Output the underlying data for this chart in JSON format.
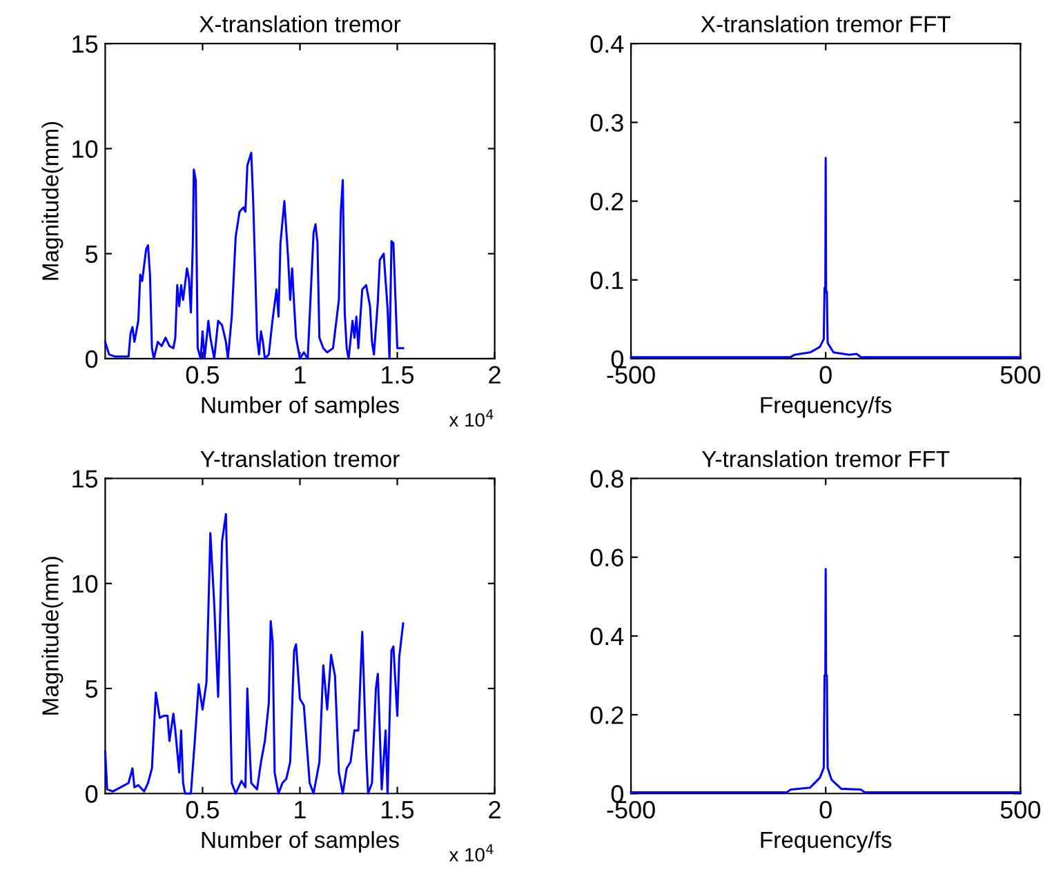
{
  "chart_data": [
    {
      "type": "line",
      "title": "X-translation tremor",
      "xlabel": "Number of samples",
      "ylabel": "Magnitude(mm)",
      "annotations": [
        "x 10$^{4}$"
      ],
      "xlim": [
        0,
        2
      ],
      "xticks": [
        0.5,
        1,
        1.5,
        2
      ],
      "ylim": [
        0,
        15
      ],
      "yticks": [
        0,
        5,
        10,
        15
      ],
      "x": [
        0,
        0.02,
        0.05,
        0.12,
        0.13,
        0.14,
        0.15,
        0.17,
        0.18,
        0.19,
        0.21,
        0.22,
        0.23,
        0.24,
        0.25,
        0.27,
        0.29,
        0.31,
        0.33,
        0.35,
        0.36,
        0.37,
        0.38,
        0.39,
        0.4,
        0.42,
        0.43,
        0.44,
        0.45,
        0.455,
        0.465,
        0.475,
        0.49,
        0.5,
        0.51,
        0.53,
        0.54,
        0.56,
        0.58,
        0.6,
        0.62,
        0.63,
        0.65,
        0.67,
        0.69,
        0.71,
        0.72,
        0.73,
        0.75,
        0.76,
        0.77,
        0.78,
        0.79,
        0.8,
        0.81,
        0.82,
        0.84,
        0.86,
        0.88,
        0.89,
        0.9,
        0.92,
        0.94,
        0.95,
        0.96,
        0.97,
        0.98,
        1.0,
        1.02,
        1.04,
        1.07,
        1.08,
        1.09,
        1.1,
        1.12,
        1.14,
        1.17,
        1.2,
        1.21,
        1.22,
        1.23,
        1.24,
        1.25,
        1.27,
        1.28,
        1.29,
        1.3,
        1.32,
        1.34,
        1.36,
        1.37,
        1.38,
        1.4,
        1.41,
        1.43,
        1.45,
        1.46,
        1.47,
        1.48,
        1.5,
        1.53
      ],
      "series": [
        {
          "color": "#0000ff",
          "values": [
            0.8,
            0.2,
            0.1,
            0.1,
            1.2,
            1.5,
            0.8,
            1.8,
            4.0,
            3.7,
            5.2,
            5.4,
            4.0,
            0.5,
            0.0,
            0.8,
            0.6,
            1.0,
            0.6,
            0.5,
            1.0,
            3.5,
            2.5,
            3.5,
            2.8,
            4.3,
            3.8,
            2.2,
            5.5,
            9.0,
            8.5,
            0.5,
            0.0,
            1.3,
            0.0,
            1.8,
            1.0,
            0.0,
            1.8,
            1.6,
            0.8,
            0.0,
            2.0,
            5.8,
            7.0,
            7.2,
            7.0,
            9.2,
            9.8,
            7.5,
            4.3,
            1.0,
            0.2,
            1.3,
            0.8,
            0.0,
            0.2,
            1.9,
            3.3,
            2.0,
            5.5,
            7.5,
            4.7,
            2.8,
            4.3,
            2.6,
            1.0,
            0.0,
            0.3,
            0.0,
            6.0,
            6.4,
            5.5,
            1.0,
            0.5,
            0.3,
            0.5,
            2.8,
            7.0,
            8.5,
            2.2,
            0.5,
            0.0,
            1.8,
            1.0,
            2.0,
            0.5,
            3.3,
            3.5,
            2.5,
            0.8,
            0.2,
            2.7,
            4.7,
            5.0,
            2.4,
            0.0,
            5.6,
            5.5,
            0.5,
            0.5
          ]
        }
      ]
    },
    {
      "type": "line",
      "title": "X-translation tremor FFT",
      "xlabel": "Frequency/fs",
      "xlim": [
        -500,
        500
      ],
      "xticks": [
        -500,
        0,
        500
      ],
      "ylim": [
        0,
        0.4
      ],
      "yticks": [
        0,
        0.1,
        0.2,
        0.3,
        0.4
      ],
      "x": [
        -500,
        -90,
        -80,
        -40,
        -15,
        -5,
        -3,
        -1,
        0,
        1,
        3,
        5,
        20,
        60,
        80,
        90,
        500
      ],
      "series": [
        {
          "color": "#0000ff",
          "values": [
            0.002,
            0.002,
            0.005,
            0.008,
            0.015,
            0.025,
            0.09,
            0.09,
            0.255,
            0.085,
            0.085,
            0.02,
            0.008,
            0.005,
            0.006,
            0.002,
            0.002
          ]
        }
      ]
    },
    {
      "type": "line",
      "title": "Y-translation tremor",
      "xlabel": "Number of samples",
      "ylabel": "Magnitude(mm)",
      "annotations": [
        "x 10$^{4}$"
      ],
      "xlim": [
        0,
        2
      ],
      "xticks": [
        0.5,
        1,
        1.5,
        2
      ],
      "ylim": [
        0,
        15
      ],
      "yticks": [
        0,
        5,
        10,
        15
      ],
      "x": [
        0,
        0.01,
        0.04,
        0.08,
        0.12,
        0.14,
        0.15,
        0.17,
        0.2,
        0.22,
        0.24,
        0.25,
        0.26,
        0.28,
        0.3,
        0.32,
        0.33,
        0.35,
        0.36,
        0.38,
        0.39,
        0.4,
        0.41,
        0.44,
        0.46,
        0.48,
        0.5,
        0.52,
        0.53,
        0.54,
        0.56,
        0.58,
        0.6,
        0.62,
        0.64,
        0.65,
        0.67,
        0.7,
        0.72,
        0.73,
        0.74,
        0.75,
        0.78,
        0.8,
        0.82,
        0.84,
        0.85,
        0.86,
        0.87,
        0.89,
        0.91,
        0.93,
        0.95,
        0.97,
        0.98,
        1.0,
        1.02,
        1.05,
        1.07,
        1.1,
        1.12,
        1.14,
        1.16,
        1.18,
        1.2,
        1.22,
        1.24,
        1.26,
        1.28,
        1.3,
        1.32,
        1.34,
        1.35,
        1.37,
        1.39,
        1.4,
        1.42,
        1.44,
        1.45,
        1.47,
        1.48,
        1.5,
        1.51,
        1.53
      ],
      "series": [
        {
          "color": "#0000ff",
          "values": [
            2.0,
            0.2,
            0.1,
            0.3,
            0.5,
            1.2,
            0.3,
            0.4,
            0.1,
            0.5,
            1.2,
            3.0,
            4.8,
            3.6,
            3.7,
            3.7,
            2.5,
            3.8,
            3.0,
            1.0,
            3.0,
            0.5,
            0.0,
            0.0,
            2.5,
            5.2,
            4.0,
            5.3,
            8.8,
            12.4,
            9.0,
            4.6,
            12.0,
            13.3,
            5.2,
            0.5,
            0.0,
            0.6,
            0.3,
            5.0,
            2.5,
            0.5,
            0.2,
            1.5,
            2.5,
            4.3,
            8.2,
            7.2,
            1.0,
            0.0,
            0.5,
            0.7,
            1.5,
            6.8,
            7.1,
            4.5,
            4.2,
            0.5,
            0.0,
            1.5,
            6.1,
            4.0,
            6.6,
            5.6,
            1.0,
            0.0,
            1.2,
            1.5,
            3.0,
            3.0,
            7.7,
            2.0,
            0.0,
            0.5,
            5.0,
            5.7,
            0.2,
            3.0,
            0.0,
            6.8,
            7.0,
            3.7,
            6.5,
            8.1
          ]
        }
      ]
    },
    {
      "type": "line",
      "title": "Y-translation tremor FFT",
      "xlabel": "Frequency/fs",
      "xlim": [
        -500,
        500
      ],
      "xticks": [
        -500,
        0,
        500
      ],
      "ylim": [
        0,
        0.8
      ],
      "yticks": [
        0,
        0.2,
        0.4,
        0.6,
        0.8
      ],
      "x": [
        -500,
        -100,
        -90,
        -40,
        -15,
        -5,
        -3,
        -1,
        0,
        1,
        3,
        5,
        15,
        40,
        90,
        100,
        500
      ],
      "series": [
        {
          "color": "#0000ff",
          "values": [
            0.003,
            0.003,
            0.01,
            0.015,
            0.04,
            0.065,
            0.3,
            0.3,
            0.57,
            0.3,
            0.3,
            0.065,
            0.035,
            0.012,
            0.01,
            0.003,
            0.003
          ]
        }
      ]
    }
  ]
}
